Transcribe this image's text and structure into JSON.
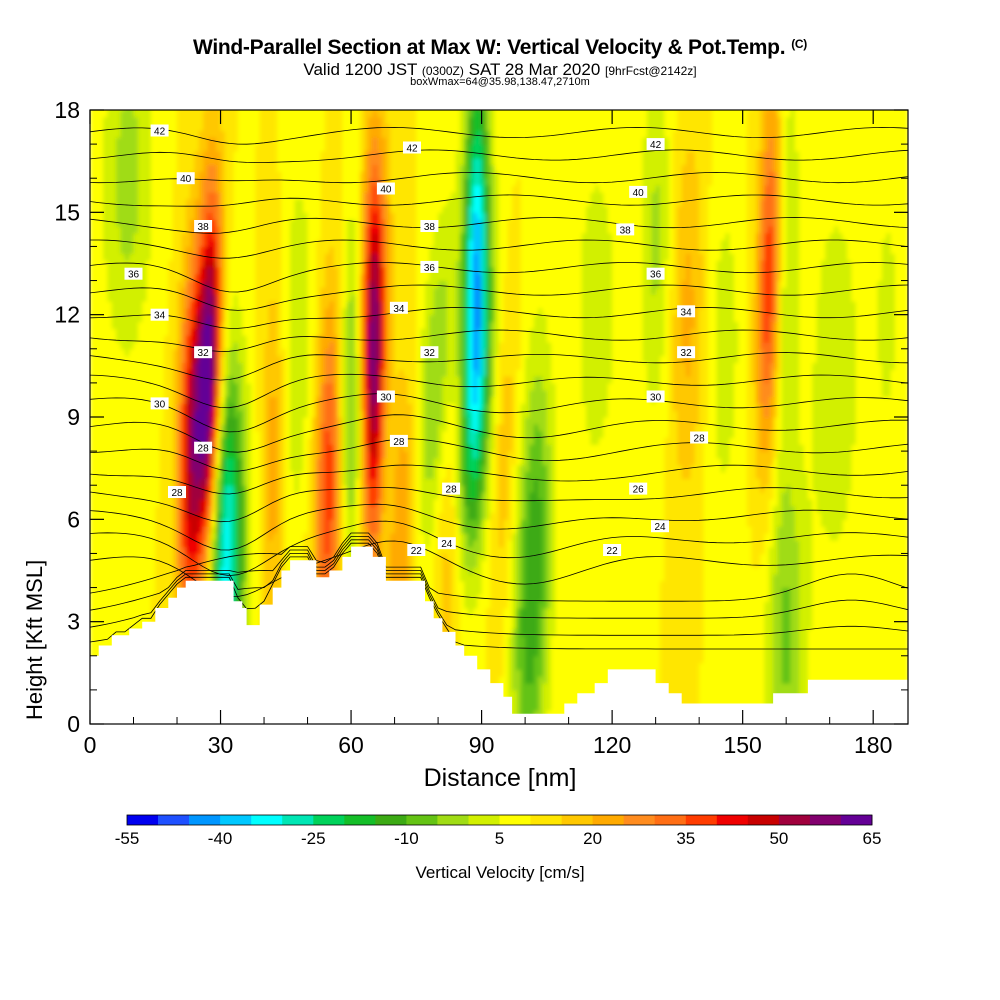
{
  "header": {
    "title": "Wind-Parallel Section at Max W: Vertical Velocity & Pot.Temp.",
    "copyright": "(C)",
    "subtitle_valid": "Valid 1200 JST",
    "subtitle_utc": "(0300Z)",
    "subtitle_date": "SAT 28 Mar 2020",
    "subtitle_fcst": "[9hrFcst@2142z]",
    "info_line": "boxWmax=64@35.98,138.47,2710m"
  },
  "chart_data": {
    "type": "heatmap",
    "xlabel": "Distance [nm]",
    "ylabel": "Height [Kft MSL]",
    "xlim": [
      0,
      188
    ],
    "ylim": [
      0,
      18
    ],
    "x_ticks": [
      0,
      30,
      60,
      90,
      120,
      150,
      180
    ],
    "y_ticks": [
      0,
      3,
      6,
      9,
      12,
      15,
      18
    ],
    "colorbar": {
      "label": "Vertical Velocity [cm/s]",
      "tick_labels": [
        -55,
        -40,
        -25,
        -10,
        5,
        20,
        35,
        50,
        65
      ],
      "colors": [
        "#0000f0",
        "#1e50ff",
        "#0096ff",
        "#00c8ff",
        "#00ffff",
        "#00e6b4",
        "#00d25a",
        "#14be28",
        "#3caa14",
        "#64c314",
        "#a0dc14",
        "#d2f000",
        "#ffff00",
        "#ffe600",
        "#ffc800",
        "#ffaa00",
        "#ff8c1e",
        "#ff6e14",
        "#ff3c00",
        "#f00000",
        "#c80000",
        "#a0003c",
        "#82006e",
        "#640096"
      ]
    },
    "theta_contour_labels": [
      42,
      40,
      38,
      36,
      34,
      32,
      30,
      28,
      26,
      24,
      22
    ],
    "theta_label_positions": [
      {
        "value": 42,
        "x": 16,
        "y": 17.4
      },
      {
        "value": 42,
        "x": 74,
        "y": 16.9
      },
      {
        "value": 42,
        "x": 130,
        "y": 17.0
      },
      {
        "value": 40,
        "x": 22,
        "y": 16.0
      },
      {
        "value": 40,
        "x": 68,
        "y": 15.7
      },
      {
        "value": 40,
        "x": 126,
        "y": 15.6
      },
      {
        "value": 38,
        "x": 26,
        "y": 14.6
      },
      {
        "value": 38,
        "x": 78,
        "y": 14.6
      },
      {
        "value": 38,
        "x": 123,
        "y": 14.5
      },
      {
        "value": 36,
        "x": 10,
        "y": 13.2
      },
      {
        "value": 36,
        "x": 78,
        "y": 13.4
      },
      {
        "value": 36,
        "x": 130,
        "y": 13.2
      },
      {
        "value": 34,
        "x": 16,
        "y": 12.0
      },
      {
        "value": 34,
        "x": 71,
        "y": 12.2
      },
      {
        "value": 34,
        "x": 137,
        "y": 12.1
      },
      {
        "value": 32,
        "x": 26,
        "y": 10.9
      },
      {
        "value": 32,
        "x": 78,
        "y": 10.9
      },
      {
        "value": 32,
        "x": 137,
        "y": 10.9
      },
      {
        "value": 30,
        "x": 16,
        "y": 9.4
      },
      {
        "value": 30,
        "x": 68,
        "y": 9.6
      },
      {
        "value": 30,
        "x": 130,
        "y": 9.6
      },
      {
        "value": 28,
        "x": 26,
        "y": 8.1
      },
      {
        "value": 28,
        "x": 71,
        "y": 8.3
      },
      {
        "value": 28,
        "x": 140,
        "y": 8.4
      },
      {
        "value": 28,
        "x": 20,
        "y": 6.8
      },
      {
        "value": 28,
        "x": 83,
        "y": 6.9
      },
      {
        "value": 26,
        "x": 126,
        "y": 6.9
      },
      {
        "value": 24,
        "x": 131,
        "y": 5.8
      },
      {
        "value": 24,
        "x": 82,
        "y": 5.3
      },
      {
        "value": 22,
        "x": 75,
        "y": 5.1
      },
      {
        "value": 22,
        "x": 120,
        "y": 5.1
      }
    ],
    "max_w_cm_s": 64
  }
}
